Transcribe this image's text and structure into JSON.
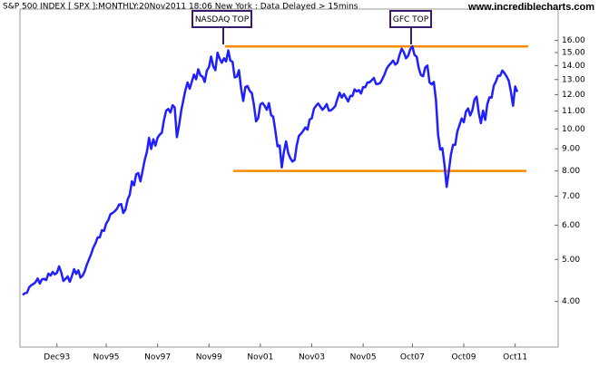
{
  "chart_data": {
    "type": "line",
    "title": "S&P 500 INDEX [ SPX ]:MONTHLY:20Nov2011 18:06 New York  : Data Delayed > 15mins",
    "source": "www.incrediblecharts.com",
    "log_scale": true,
    "grid": false,
    "ylim": [
      3.14,
      18.9
    ],
    "yticks": [
      {
        "value": 4,
        "label": "4.00"
      },
      {
        "value": 5,
        "label": "5.00"
      },
      {
        "value": 6,
        "label": "6.00"
      },
      {
        "value": 7,
        "label": "7.00"
      },
      {
        "value": 8,
        "label": "8.00"
      },
      {
        "value": 9,
        "label": "9.00"
      },
      {
        "value": 10,
        "label": "10.00"
      },
      {
        "value": 11,
        "label": "11.00"
      },
      {
        "value": 12,
        "label": "12.00"
      },
      {
        "value": 13,
        "label": "13.00"
      },
      {
        "value": 14,
        "label": "14.00"
      },
      {
        "value": 15,
        "label": "15.00"
      },
      {
        "value": 16,
        "label": "16.00"
      }
    ],
    "categories": [
      null,
      null,
      null,
      null,
      null,
      null,
      null,
      null,
      null,
      null,
      null,
      null,
      null,
      null,
      null,
      null,
      "Dec93",
      null,
      null,
      null,
      null,
      null,
      null,
      null,
      null,
      null,
      null,
      null,
      null,
      null,
      null,
      null,
      null,
      null,
      null,
      null,
      null,
      null,
      null,
      "Nov95",
      null,
      null,
      null,
      null,
      null,
      null,
      null,
      null,
      null,
      null,
      null,
      null,
      null,
      null,
      null,
      null,
      null,
      null,
      null,
      null,
      null,
      null,
      null,
      "Nov97",
      null,
      null,
      null,
      null,
      null,
      null,
      null,
      null,
      null,
      null,
      null,
      null,
      null,
      null,
      null,
      null,
      null,
      null,
      null,
      null,
      null,
      null,
      null,
      "Nov99",
      null,
      null,
      null,
      null,
      null,
      null,
      null,
      null,
      null,
      null,
      null,
      null,
      null,
      null,
      null,
      null,
      null,
      null,
      null,
      null,
      null,
      null,
      null,
      "Nov01",
      null,
      null,
      null,
      null,
      null,
      null,
      null,
      null,
      null,
      null,
      null,
      null,
      null,
      null,
      null,
      null,
      null,
      null,
      null,
      null,
      null,
      null,
      null,
      "Nov03",
      null,
      null,
      null,
      null,
      null,
      null,
      null,
      null,
      null,
      null,
      null,
      null,
      null,
      null,
      null,
      null,
      null,
      null,
      null,
      null,
      null,
      null,
      null,
      "Nov05",
      null,
      null,
      null,
      null,
      null,
      null,
      null,
      null,
      null,
      null,
      null,
      null,
      null,
      null,
      null,
      null,
      null,
      null,
      null,
      null,
      null,
      null,
      "Oct07",
      null,
      null,
      null,
      null,
      null,
      null,
      null,
      null,
      null,
      null,
      null,
      null,
      null,
      null,
      null,
      null,
      null,
      null,
      null,
      null,
      null,
      null,
      null,
      "Oct09",
      null,
      null,
      null,
      null,
      null,
      null,
      null,
      null,
      null,
      null,
      null,
      null,
      null,
      null,
      null,
      null,
      null,
      null,
      null,
      null,
      null,
      null,
      null,
      "Oct11",
      null
    ],
    "series": [
      {
        "color": "#1f1fff",
        "values": [
          4.14,
          4.18,
          4.19,
          4.31,
          4.36,
          4.39,
          4.43,
          4.52,
          4.4,
          4.5,
          4.51,
          4.48,
          4.64,
          4.59,
          4.68,
          4.62,
          4.66,
          4.82,
          4.67,
          4.46,
          4.51,
          4.57,
          4.44,
          4.58,
          4.75,
          4.63,
          4.72,
          4.54,
          4.59,
          4.7,
          4.87,
          5.01,
          5.15,
          5.33,
          5.45,
          5.62,
          5.62,
          5.84,
          5.82,
          6.05,
          6.16,
          6.36,
          6.4,
          6.46,
          6.54,
          6.69,
          6.71,
          6.4,
          6.52,
          6.87,
          7.05,
          7.57,
          7.41,
          7.86,
          7.91,
          7.57,
          8.01,
          8.48,
          8.85,
          9.54,
          8.99,
          9.47,
          9.15,
          9.55,
          9.7,
          9.8,
          10.49,
          11.02,
          11.12,
          10.91,
          11.34,
          11.21,
          9.57,
          10.17,
          10.99,
          11.64,
          12.29,
          12.8,
          12.38,
          12.86,
          13.35,
          13.02,
          13.73,
          13.29,
          13.2,
          12.83,
          13.63,
          13.89,
          14.69,
          13.94,
          13.66,
          14.99,
          14.52,
          14.21,
          14.55,
          14.31,
          15.18,
          14.37,
          14.29,
          13.15,
          13.2,
          13.66,
          12.4,
          11.6,
          12.49,
          12.56,
          12.24,
          12.11,
          11.34,
          10.41,
          10.6,
          11.39,
          11.48,
          11.3,
          11.07,
          11.47,
          10.76,
          10.67,
          9.9,
          9.12,
          9.16,
          8.15,
          8.86,
          9.36,
          8.8,
          8.56,
          8.41,
          8.48,
          9.17,
          9.64,
          9.75,
          9.9,
          10.08,
          9.96,
          10.51,
          10.58,
          11.12,
          11.31,
          11.45,
          11.26,
          11.07,
          11.21,
          11.41,
          11.02,
          11.04,
          11.15,
          11.3,
          11.74,
          12.12,
          11.81,
          12.04,
          11.81,
          11.57,
          11.92,
          11.91,
          12.34,
          12.2,
          12.29,
          12.07,
          12.49,
          12.48,
          12.8,
          12.81,
          12.95,
          13.11,
          12.7,
          12.7,
          12.77,
          13.04,
          13.36,
          13.78,
          14.01,
          14.18,
          14.38,
          14.07,
          14.21,
          14.82,
          15.31,
          15.03,
          14.55,
          14.74,
          15.27,
          15.49,
          14.81,
          14.68,
          13.79,
          13.31,
          13.23,
          13.86,
          14.0,
          12.8,
          12.67,
          12.83,
          11.66,
          9.69,
          8.96,
          9.03,
          8.26,
          7.35,
          7.98,
          8.73,
          9.19,
          9.19,
          9.87,
          10.21,
          10.57,
          10.36,
          10.96,
          11.15,
          10.74,
          11.04,
          11.69,
          11.87,
          10.89,
          10.31,
          11.02,
          10.49,
          11.41,
          11.83,
          11.81,
          12.58,
          12.86,
          13.27,
          13.26,
          13.64,
          13.45,
          13.21,
          12.92,
          12.19,
          11.31,
          12.53,
          12.17
        ]
      }
    ],
    "reference_lines": [
      {
        "value": 15.5,
        "color": "#ff8c00"
      },
      {
        "value": 8.0,
        "color": "#ff8c00"
      }
    ],
    "annotations": [
      {
        "text": "NASDAQ TOP"
      },
      {
        "text": "GFC TOP"
      }
    ]
  }
}
